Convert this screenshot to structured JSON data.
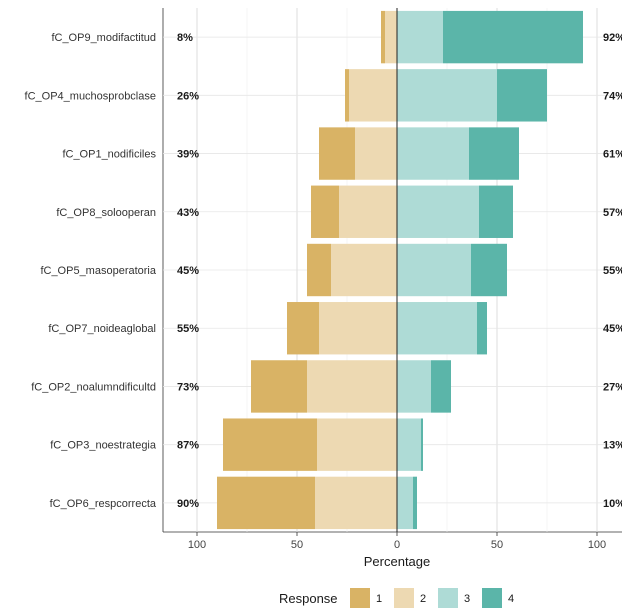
{
  "chart_data": {
    "type": "bar",
    "orientation": "horizontal-diverging-stacked",
    "xlabel": "Percentage",
    "x_ticks": [
      "100",
      "50",
      "0",
      "50",
      "100"
    ],
    "xlim": [
      -100,
      100
    ],
    "grid": true,
    "legend": {
      "title": "Response",
      "placement": "bottom",
      "entries": [
        {
          "label": "1",
          "color": "#D9B365"
        },
        {
          "label": "2",
          "color": "#EDD9B2"
        },
        {
          "label": "3",
          "color": "#AEDBD6"
        },
        {
          "label": "4",
          "color": "#5BB5A9"
        }
      ]
    },
    "categories": [
      "fC_OP9_modifactitud",
      "fC_OP4_muchosprobclase",
      "fC_OP1_nodificiles",
      "fC_OP8_solooperan",
      "fC_OP5_masoperatoria",
      "fC_OP7_noideaglobal",
      "fC_OP2_noalumndificultd",
      "fC_OP3_noestrategia",
      "fC_OP6_respcorrecta"
    ],
    "series": [
      {
        "name": "1",
        "values": [
          2,
          2,
          18,
          14,
          12,
          16,
          28,
          47,
          49
        ]
      },
      {
        "name": "2",
        "values": [
          6,
          24,
          21,
          29,
          33,
          39,
          45,
          40,
          41
        ]
      },
      {
        "name": "3",
        "values": [
          23,
          50,
          36,
          41,
          37,
          40,
          17,
          12,
          8
        ]
      },
      {
        "name": "4",
        "values": [
          70,
          25,
          25,
          17,
          18,
          5,
          10,
          1,
          2
        ]
      }
    ],
    "left_labels": [
      "8%",
      "26%",
      "39%",
      "43%",
      "45%",
      "55%",
      "73%",
      "87%",
      "90%"
    ],
    "right_labels": [
      "92%",
      "74%",
      "61%",
      "57%",
      "55%",
      "45%",
      "27%",
      "13%",
      "10%"
    ]
  }
}
